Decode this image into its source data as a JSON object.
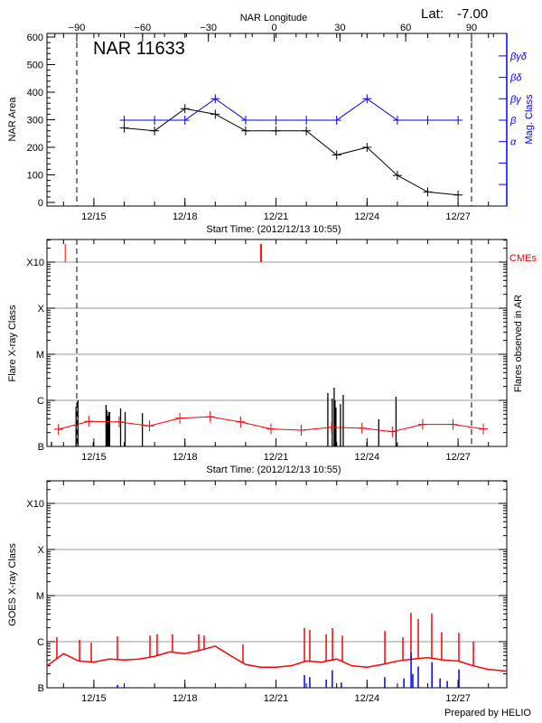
{
  "header": {
    "lat_label": "Lat:",
    "lat_value": "-7.00",
    "footer": "Prepared by HELIO"
  },
  "colors": {
    "area": "#000000",
    "mag_class": "#0000ff",
    "goes": "#ff0000",
    "cme": "#ff0000",
    "flare": "#000000",
    "goes_events": "#0000ff",
    "grid": "#999999"
  },
  "chart_data": [
    {
      "type": "line",
      "title": "NAR 11633",
      "xlabel": "Start Time: (2012/12/13 10:55)",
      "ylabel": "NAR Area",
      "y2label": "Mag. Class",
      "top_xlabel": "NAR Longitude",
      "xlim": [
        "12/13 10:55",
        "12/28 14:20"
      ],
      "ylim": [
        0,
        613
      ],
      "x_ticks": [
        "12/15",
        "12/18",
        "12/21",
        "12/24",
        "12/27"
      ],
      "y_ticks": [
        0,
        100,
        200,
        300,
        400,
        500,
        600
      ],
      "longitude_ticks": [
        -90,
        -60,
        -30,
        0,
        30,
        60,
        90
      ],
      "limb_longitudes": [
        -90,
        90
      ],
      "mag_class_levels": [
        "",
        "",
        "α",
        "β",
        "βγ",
        "βδ",
        "βγδ"
      ],
      "x": [
        "12/16 00:00",
        "12/17 00:00",
        "12/18 00:00",
        "12/19 00:00",
        "12/20 00:00",
        "12/21 00:00",
        "12/22 00:00",
        "12/23 00:00",
        "12/24 00:00",
        "12/25 00:00",
        "12/26 00:00",
        "12/27 00:00"
      ],
      "series": [
        {
          "name": "NAR Area",
          "values": [
            270,
            260,
            340,
            320,
            260,
            260,
            260,
            172,
            200,
            98,
            38,
            27
          ]
        },
        {
          "name": "Mag. Class",
          "values": [
            "β",
            "β",
            "β",
            "βγ",
            "β",
            "β",
            "β",
            "β",
            "βγ",
            "β",
            "β",
            "β"
          ]
        }
      ]
    },
    {
      "type": "bar",
      "ylabel": "Flare X-ray Class",
      "y2label": "Flares observed in AR",
      "legend": "CMEs",
      "xlabel": "Start Time: (2012/12/13 10:55)",
      "y_scale": "log",
      "y_ticks": [
        "B",
        "C",
        "M",
        "X",
        "X10"
      ],
      "y_tick_flux": [
        1e-07,
        1e-06,
        1e-05,
        0.0001,
        0.001
      ],
      "grid": true,
      "flares": [
        [
          "12/13 14:30",
          1.25e-07
        ],
        [
          "12/14 09:55",
          7.3e-07
        ],
        [
          "12/14 11:25",
          1e-06
        ],
        [
          "12/14 23:35",
          1.25e-07
        ],
        [
          "12/15 09:38",
          8e-07
        ],
        [
          "12/15 10:20",
          6.1e-07
        ],
        [
          "12/15 11:05",
          4.6e-07
        ],
        [
          "12/15 11:50",
          5.6e-07
        ],
        [
          "12/15 12:30",
          5.6e-07
        ],
        [
          "12/15 21:08",
          6.7e-07
        ],
        [
          "12/16 00:43",
          5.6e-07
        ],
        [
          "12/16 14:22",
          5.3e-07
        ],
        [
          "12/22 17:00",
          1.44e-06
        ],
        [
          "12/22 20:30",
          1.09e-06
        ],
        [
          "12/22 22:00",
          1.88e-06
        ],
        [
          "12/22 22:42",
          1e-06
        ],
        [
          "12/22 23:25",
          7e-07
        ],
        [
          "12/23 03:00",
          8.3e-07
        ],
        [
          "12/23 05:10",
          1.31e-06
        ],
        [
          "12/23 23:55",
          1.25e-07
        ],
        [
          "12/24 09:15",
          3.9e-07
        ],
        [
          "12/24 22:55",
          1.2e-06
        ],
        [
          "12/24 23:35",
          1.1e-07
        ]
      ],
      "cmes": [
        "12/14 01:20",
        "12/20 11:48",
        "12/20 12:30"
      ],
      "background": {
        "x": [
          "12/13 20:00",
          "12/14 20:00",
          "12/15 20:00",
          "12/16 20:00",
          "12/17 20:00",
          "12/18 20:00",
          "12/19 20:00",
          "12/20 20:00",
          "12/21 20:00",
          "12/22 20:00",
          "12/23 20:00",
          "12/24 20:00",
          "12/25 20:00",
          "12/26 20:00",
          "12/27 20:00"
        ],
        "values": [
          2.36e-07,
          3.5e-07,
          3.4e-07,
          2.8e-07,
          4.1e-07,
          4.4e-07,
          3.4e-07,
          2.4e-07,
          2.25e-07,
          2.6e-07,
          2.5e-07,
          2.1e-07,
          3e-07,
          3e-07,
          2.4e-07
        ]
      }
    },
    {
      "type": "line",
      "ylabel": "GOES X-ray Class",
      "y_scale": "log",
      "y_ticks": [
        "B",
        "C",
        "M",
        "X",
        "X10"
      ],
      "y_tick_flux": [
        1e-07,
        1e-06,
        1e-05,
        0.0001,
        0.001
      ],
      "grid": true,
      "goes_baseline": {
        "x": [
          "12/13 11:00",
          "12/14 00:00",
          "12/14 12:00",
          "12/15 00:00",
          "12/15 12:00",
          "12/16 00:00",
          "12/16 12:00",
          "12/17 00:00",
          "12/17 12:00",
          "12/18 00:00",
          "12/18 12:00",
          "12/19 00:00",
          "12/19 12:00",
          "12/20 00:00",
          "12/20 12:00",
          "12/21 00:00",
          "12/21 12:00",
          "12/22 00:00",
          "12/22 12:00",
          "12/23 00:00",
          "12/23 12:00",
          "12/24 00:00",
          "12/24 12:00",
          "12/25 00:00",
          "12/25 12:00",
          "12/26 00:00",
          "12/26 12:00",
          "12/27 00:00",
          "12/27 12:00",
          "12/28 00:00",
          "12/28 14:00"
        ],
        "values": [
          3e-07,
          5.5e-07,
          3.8e-07,
          3.6e-07,
          4.2e-07,
          4e-07,
          4.2e-07,
          4.8e-07,
          6e-07,
          5.5e-07,
          6.5e-07,
          8e-07,
          5e-07,
          3.2e-07,
          2.8e-07,
          2.8e-07,
          3e-07,
          3.8e-07,
          3.6e-07,
          4.2e-07,
          3e-07,
          2.8e-07,
          3.2e-07,
          3.8e-07,
          4.2e-07,
          4.5e-07,
          4e-07,
          3.8e-07,
          3e-07,
          2.5e-07,
          2.3e-07
        ]
      },
      "goes_peaks": [
        [
          "12/13 18:45",
          1.25e-06
        ],
        [
          "12/14 12:40",
          1.1e-06
        ],
        [
          "12/14 21:55",
          9.5e-07
        ],
        [
          "12/15 18:35",
          1.3e-06
        ],
        [
          "12/16 20:20",
          1.35e-06
        ],
        [
          "12/17 02:00",
          1.45e-06
        ],
        [
          "12/17 14:10",
          1.45e-06
        ],
        [
          "12/18 10:55",
          1.45e-06
        ],
        [
          "12/18 15:10",
          1.35e-06
        ],
        [
          "12/19 21:55",
          8.7e-07
        ],
        [
          "12/21 22:30",
          1.97e-06
        ],
        [
          "12/22 02:45",
          1.8e-06
        ],
        [
          "12/22 15:40",
          1.45e-06
        ],
        [
          "12/22 20:40",
          1.97e-06
        ],
        [
          "12/23 04:30",
          1.35e-06
        ],
        [
          "12/24 14:05",
          1.7e-06
        ],
        [
          "12/25 04:20",
          1.25e-06
        ],
        [
          "12/25 10:45",
          4.2e-06
        ],
        [
          "12/25 16:30",
          3.1e-06
        ],
        [
          "12/26 03:10",
          4.1e-06
        ],
        [
          "12/26 11:00",
          1.6e-06
        ],
        [
          "12/27 00:35",
          1.55e-06
        ],
        [
          "12/27 12:05",
          1e-06
        ]
      ],
      "goes_events": [
        [
          "12/15 18:40",
          1.15e-07
        ],
        [
          "12/21 22:30",
          1.88e-07
        ],
        [
          "12/22 02:45",
          1.7e-07
        ],
        [
          "12/22 15:45",
          1.5e-07
        ],
        [
          "12/22 20:30",
          2.4e-07
        ],
        [
          "12/23 03:40",
          1.3e-07
        ],
        [
          "12/24 14:00",
          1.7e-07
        ],
        [
          "12/25 05:10",
          1.6e-07
        ],
        [
          "12/25 10:50",
          5.8e-07
        ],
        [
          "12/25 12:10",
          2e-07
        ],
        [
          "12/25 16:30",
          2.9e-07
        ],
        [
          "12/26 03:20",
          3.6e-07
        ],
        [
          "12/26 09:45",
          1.6e-07
        ],
        [
          "12/26 15:25",
          1.4e-07
        ],
        [
          "12/27 00:40",
          2.5e-07
        ]
      ]
    }
  ]
}
